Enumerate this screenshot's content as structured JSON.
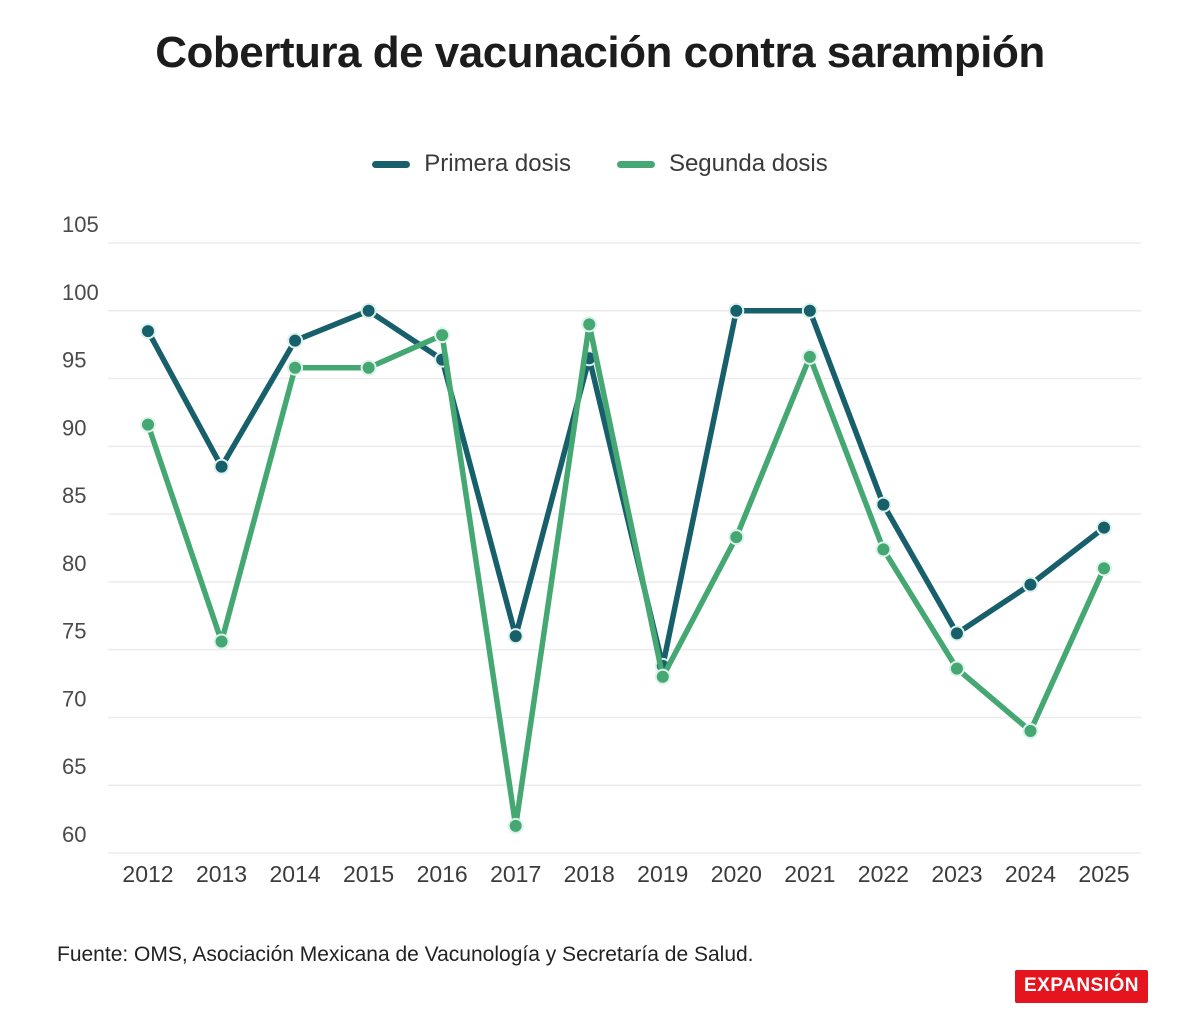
{
  "title": "Cobertura de vacunación contra sarampión",
  "chart_data": {
    "type": "line",
    "title": "Cobertura de vacunación contra sarampión",
    "x": [
      2012,
      2013,
      2014,
      2015,
      2016,
      2017,
      2018,
      2019,
      2020,
      2021,
      2022,
      2023,
      2024,
      2025
    ],
    "series": [
      {
        "name": "Primera dosis",
        "color": "#17606B",
        "values": [
          98.5,
          88.5,
          97.8,
          100,
          96.4,
          76,
          96.5,
          73.8,
          100,
          100,
          85.7,
          76.2,
          79.8,
          84
        ]
      },
      {
        "name": "Segunda dosis",
        "color": "#45A873",
        "values": [
          91.6,
          75.6,
          95.8,
          95.8,
          98.2,
          62,
          99,
          73,
          83.3,
          96.6,
          82.4,
          73.6,
          69,
          81
        ]
      }
    ],
    "ylim": [
      60,
      105
    ],
    "yticks": [
      105,
      100,
      95,
      90,
      85,
      80,
      75,
      70,
      65,
      60
    ],
    "grid": "horizontal-only",
    "legend_position": "top-center",
    "grid_color": "#edebeb",
    "axis_label_color": "#4a4a4a",
    "dot_halo_color": "#ddf2ea"
  },
  "footer": {
    "source": "Fuente: OMS, Asociación Mexicana de Vacunología y Secretaría de Salud.",
    "logo_text": "EXPANSIÓN",
    "logo_color": "#E5141E"
  }
}
